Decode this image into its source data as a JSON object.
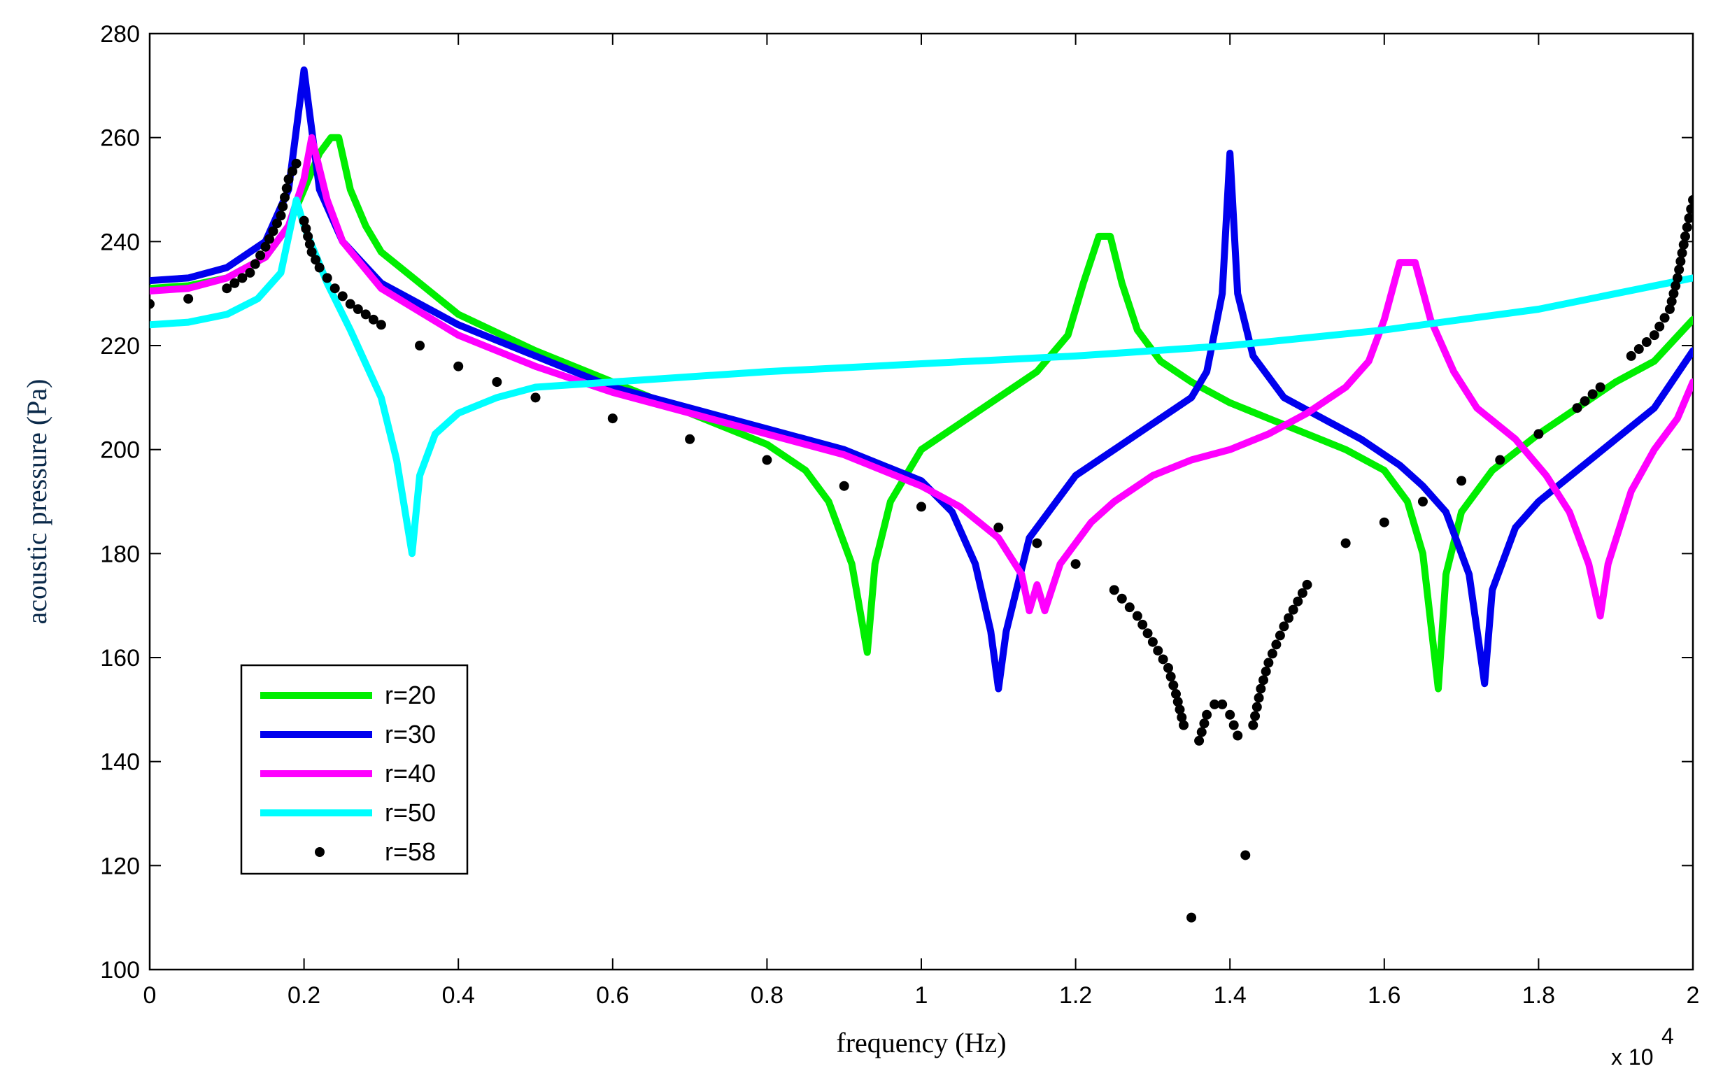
{
  "chart_data": {
    "type": "line",
    "title": "",
    "xlabel": "frequency (Hz)",
    "ylabel": "acoustic pressure (Pa)",
    "x_multiplier_label": "x 10",
    "x_multiplier_exponent": "4",
    "xlim": [
      0,
      2
    ],
    "ylim": [
      100,
      280
    ],
    "x_ticks": [
      0,
      0.2,
      0.4,
      0.6,
      0.8,
      1,
      1.2,
      1.4,
      1.6,
      1.8,
      2
    ],
    "x_tick_labels": [
      "0",
      "0.2",
      "0.4",
      "0.6",
      "0.8",
      "1",
      "1.2",
      "1.4",
      "1.6",
      "1.8",
      "2"
    ],
    "y_ticks": [
      100,
      120,
      140,
      160,
      180,
      200,
      220,
      240,
      260,
      280
    ],
    "y_tick_labels": [
      "100",
      "120",
      "140",
      "160",
      "180",
      "200",
      "220",
      "240",
      "260",
      "280"
    ],
    "legend_position": "bottom-left",
    "series": [
      {
        "name": "r=20",
        "style": "line",
        "color": "#00ee00",
        "points": [
          [
            0,
            231
          ],
          [
            0.05,
            231.5
          ],
          [
            0.1,
            233
          ],
          [
            0.15,
            237
          ],
          [
            0.18,
            243
          ],
          [
            0.2,
            250
          ],
          [
            0.22,
            257
          ],
          [
            0.235,
            260
          ],
          [
            0.245,
            260
          ],
          [
            0.26,
            250
          ],
          [
            0.28,
            243
          ],
          [
            0.3,
            238
          ],
          [
            0.35,
            232
          ],
          [
            0.4,
            226
          ],
          [
            0.5,
            219
          ],
          [
            0.6,
            213
          ],
          [
            0.7,
            207
          ],
          [
            0.8,
            201
          ],
          [
            0.85,
            196
          ],
          [
            0.88,
            190
          ],
          [
            0.91,
            178
          ],
          [
            0.93,
            161
          ],
          [
            0.94,
            178
          ],
          [
            0.96,
            190
          ],
          [
            1.0,
            200
          ],
          [
            1.05,
            205
          ],
          [
            1.1,
            210
          ],
          [
            1.15,
            215
          ],
          [
            1.19,
            222
          ],
          [
            1.21,
            232
          ],
          [
            1.23,
            241
          ],
          [
            1.245,
            241
          ],
          [
            1.26,
            232
          ],
          [
            1.28,
            223
          ],
          [
            1.31,
            217
          ],
          [
            1.35,
            213
          ],
          [
            1.4,
            209
          ],
          [
            1.45,
            206
          ],
          [
            1.5,
            203
          ],
          [
            1.55,
            200
          ],
          [
            1.6,
            196
          ],
          [
            1.63,
            190
          ],
          [
            1.65,
            180
          ],
          [
            1.67,
            154
          ],
          [
            1.68,
            176
          ],
          [
            1.7,
            188
          ],
          [
            1.74,
            196
          ],
          [
            1.8,
            203
          ],
          [
            1.85,
            208
          ],
          [
            1.9,
            213
          ],
          [
            1.95,
            217
          ],
          [
            2.0,
            225
          ]
        ]
      },
      {
        "name": "r=30",
        "style": "line",
        "color": "#0000ee",
        "points": [
          [
            0,
            232.5
          ],
          [
            0.05,
            233
          ],
          [
            0.1,
            235
          ],
          [
            0.15,
            240
          ],
          [
            0.18,
            250
          ],
          [
            0.2,
            273
          ],
          [
            0.22,
            250
          ],
          [
            0.25,
            240
          ],
          [
            0.3,
            232
          ],
          [
            0.4,
            224
          ],
          [
            0.5,
            218
          ],
          [
            0.6,
            212
          ],
          [
            0.7,
            208
          ],
          [
            0.8,
            204
          ],
          [
            0.9,
            200
          ],
          [
            0.95,
            197
          ],
          [
            1.0,
            194
          ],
          [
            1.04,
            188
          ],
          [
            1.07,
            178
          ],
          [
            1.09,
            165
          ],
          [
            1.1,
            154
          ],
          [
            1.11,
            165
          ],
          [
            1.14,
            183
          ],
          [
            1.2,
            195
          ],
          [
            1.25,
            200
          ],
          [
            1.3,
            205
          ],
          [
            1.35,
            210
          ],
          [
            1.37,
            215
          ],
          [
            1.39,
            230
          ],
          [
            1.4,
            257
          ],
          [
            1.41,
            230
          ],
          [
            1.43,
            218
          ],
          [
            1.47,
            210
          ],
          [
            1.52,
            206
          ],
          [
            1.57,
            202
          ],
          [
            1.62,
            197
          ],
          [
            1.65,
            193
          ],
          [
            1.68,
            188
          ],
          [
            1.71,
            176
          ],
          [
            1.73,
            155
          ],
          [
            1.74,
            173
          ],
          [
            1.77,
            185
          ],
          [
            1.8,
            190
          ],
          [
            1.85,
            196
          ],
          [
            1.9,
            202
          ],
          [
            1.95,
            208
          ],
          [
            2.0,
            219
          ]
        ]
      },
      {
        "name": "r=40",
        "style": "line",
        "color": "#ff00ff",
        "points": [
          [
            0,
            230.5
          ],
          [
            0.05,
            231
          ],
          [
            0.1,
            233
          ],
          [
            0.15,
            237
          ],
          [
            0.18,
            243
          ],
          [
            0.2,
            252
          ],
          [
            0.21,
            260
          ],
          [
            0.23,
            248
          ],
          [
            0.25,
            240
          ],
          [
            0.3,
            231
          ],
          [
            0.4,
            222
          ],
          [
            0.5,
            216
          ],
          [
            0.6,
            211
          ],
          [
            0.7,
            207
          ],
          [
            0.8,
            203
          ],
          [
            0.9,
            199
          ],
          [
            1.0,
            193
          ],
          [
            1.05,
            189
          ],
          [
            1.1,
            183
          ],
          [
            1.13,
            176
          ],
          [
            1.14,
            169
          ],
          [
            1.15,
            174
          ],
          [
            1.16,
            169
          ],
          [
            1.18,
            178
          ],
          [
            1.22,
            186
          ],
          [
            1.25,
            190
          ],
          [
            1.3,
            195
          ],
          [
            1.35,
            198
          ],
          [
            1.4,
            200
          ],
          [
            1.45,
            203
          ],
          [
            1.5,
            207
          ],
          [
            1.55,
            212
          ],
          [
            1.58,
            217
          ],
          [
            1.6,
            225
          ],
          [
            1.62,
            236
          ],
          [
            1.64,
            236
          ],
          [
            1.66,
            225
          ],
          [
            1.69,
            215
          ],
          [
            1.72,
            208
          ],
          [
            1.77,
            202
          ],
          [
            1.81,
            195
          ],
          [
            1.84,
            188
          ],
          [
            1.865,
            178
          ],
          [
            1.88,
            168
          ],
          [
            1.89,
            178
          ],
          [
            1.92,
            192
          ],
          [
            1.95,
            200
          ],
          [
            1.98,
            206
          ],
          [
            2.0,
            213
          ]
        ]
      },
      {
        "name": "r=50",
        "style": "line",
        "color": "#00ffff",
        "points": [
          [
            0,
            224
          ],
          [
            0.05,
            224.5
          ],
          [
            0.1,
            226
          ],
          [
            0.14,
            229
          ],
          [
            0.17,
            234
          ],
          [
            0.19,
            248
          ],
          [
            0.2,
            243
          ],
          [
            0.23,
            232
          ],
          [
            0.26,
            223
          ],
          [
            0.3,
            210
          ],
          [
            0.32,
            198
          ],
          [
            0.34,
            180
          ],
          [
            0.35,
            195
          ],
          [
            0.37,
            203
          ],
          [
            0.4,
            207
          ],
          [
            0.45,
            210
          ],
          [
            0.5,
            212
          ],
          [
            0.6,
            213
          ],
          [
            0.8,
            215
          ],
          [
            1.0,
            216.5
          ],
          [
            1.2,
            218
          ],
          [
            1.4,
            220
          ],
          [
            1.6,
            223
          ],
          [
            1.7,
            225
          ],
          [
            1.8,
            227
          ],
          [
            1.9,
            230
          ],
          [
            2.0,
            233
          ]
        ]
      },
      {
        "name": "r=58",
        "style": "dots",
        "color": "#000000",
        "points": [
          [
            0,
            228
          ],
          [
            0.05,
            229
          ],
          [
            0.1,
            231
          ],
          [
            0.13,
            234
          ],
          [
            0.15,
            239
          ],
          [
            0.17,
            245
          ],
          [
            0.18,
            252
          ],
          [
            0.19,
            255
          ],
          [
            0.2,
            244
          ],
          [
            0.21,
            238
          ],
          [
            0.22,
            235
          ],
          [
            0.24,
            231
          ],
          [
            0.26,
            228
          ],
          [
            0.28,
            226
          ],
          [
            0.3,
            224
          ],
          [
            0.35,
            220
          ],
          [
            0.4,
            216
          ],
          [
            0.45,
            213
          ],
          [
            0.5,
            210
          ],
          [
            0.6,
            206
          ],
          [
            0.7,
            202
          ],
          [
            0.8,
            198
          ],
          [
            0.9,
            193
          ],
          [
            1.0,
            189
          ],
          [
            1.1,
            185
          ],
          [
            1.15,
            182
          ],
          [
            1.2,
            178
          ],
          [
            1.25,
            173
          ],
          [
            1.28,
            168
          ],
          [
            1.3,
            163
          ],
          [
            1.32,
            158
          ],
          [
            1.33,
            153
          ],
          [
            1.34,
            147
          ],
          [
            1.35,
            110
          ],
          [
            1.36,
            144
          ],
          [
            1.37,
            149
          ],
          [
            1.38,
            151
          ],
          [
            1.39,
            151
          ],
          [
            1.4,
            149
          ],
          [
            1.41,
            145
          ],
          [
            1.42,
            122
          ],
          [
            1.43,
            147
          ],
          [
            1.44,
            154
          ],
          [
            1.45,
            159
          ],
          [
            1.47,
            166
          ],
          [
            1.5,
            174
          ],
          [
            1.55,
            182
          ],
          [
            1.6,
            186
          ],
          [
            1.65,
            190
          ],
          [
            1.7,
            194
          ],
          [
            1.75,
            198
          ],
          [
            1.8,
            203
          ],
          [
            1.85,
            208
          ],
          [
            1.88,
            212
          ],
          [
            1.92,
            218
          ],
          [
            1.95,
            222
          ],
          [
            1.97,
            227
          ],
          [
            1.98,
            233
          ],
          [
            1.99,
            241
          ],
          [
            2.0,
            248
          ]
        ]
      }
    ]
  }
}
